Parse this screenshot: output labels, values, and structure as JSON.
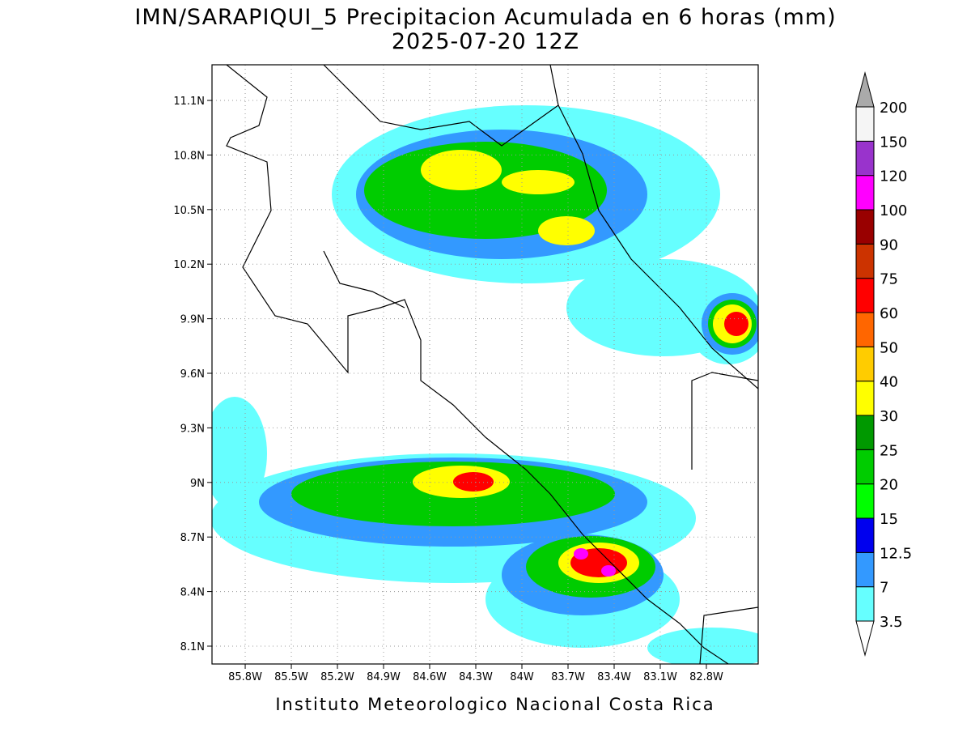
{
  "title": "IMN/SARAPIQUI_5 Precipitacion Acumulada en 6 horas (mm)",
  "subtitle": "2025-07-20 12Z",
  "footer": "Instituto Meteorologico Nacional Costa Rica",
  "map": {
    "xlim": [
      -86.016,
      -82.463
    ],
    "ylim": [
      8.002,
      11.296
    ],
    "grid": true,
    "xticks": [
      {
        "value": -85.8,
        "label": "85.8W"
      },
      {
        "value": -85.5,
        "label": "85.5W"
      },
      {
        "value": -85.2,
        "label": "85.2W"
      },
      {
        "value": -84.9,
        "label": "84.9W"
      },
      {
        "value": -84.6,
        "label": "84.6W"
      },
      {
        "value": -84.3,
        "label": "84.3W"
      },
      {
        "value": -84.0,
        "label": "84W"
      },
      {
        "value": -83.7,
        "label": "83.7W"
      },
      {
        "value": -83.4,
        "label": "83.4W"
      },
      {
        "value": -83.1,
        "label": "83.1W"
      },
      {
        "value": -82.8,
        "label": "82.8W"
      }
    ],
    "yticks": [
      {
        "value": 8.1,
        "label": "8.1N"
      },
      {
        "value": 8.4,
        "label": "8.4N"
      },
      {
        "value": 8.7,
        "label": "8.7N"
      },
      {
        "value": 9.0,
        "label": "9N"
      },
      {
        "value": 9.3,
        "label": "9.3N"
      },
      {
        "value": 9.6,
        "label": "9.6N"
      },
      {
        "value": 9.9,
        "label": "9.9N"
      },
      {
        "value": 10.2,
        "label": "10.2N"
      },
      {
        "value": 10.5,
        "label": "10.5N"
      },
      {
        "value": 10.8,
        "label": "10.8N"
      },
      {
        "value": 11.1,
        "label": "11.1N"
      }
    ]
  },
  "colorbar": {
    "levels": [
      3.5,
      7,
      12.5,
      15,
      20,
      25,
      30,
      40,
      50,
      60,
      75,
      90,
      100,
      120,
      150,
      200
    ],
    "colors": [
      "#66ffff",
      "#3399ff",
      "#0000ee",
      "#00ff00",
      "#00cc00",
      "#009900",
      "#ffff00",
      "#ffcc00",
      "#ff6600",
      "#ff0000",
      "#cc3300",
      "#990000",
      "#ff00ff",
      "#9933cc",
      "#f5f5f5"
    ],
    "under_color": "#ffffff",
    "over_color": "#aaaaaa"
  }
}
